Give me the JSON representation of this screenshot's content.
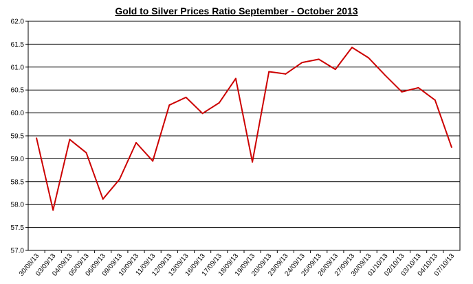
{
  "chart_data": {
    "type": "line",
    "title": "Gold to Silver Prices Ratio September - October 2013",
    "xlabel": "",
    "ylabel": "",
    "ylim": [
      57.0,
      62.0
    ],
    "ytick_step": 0.5,
    "grid": "horizontal",
    "legend": "none",
    "categories": [
      "30/08/13",
      "03/09/13",
      "04/09/13",
      "05/09/13",
      "06/09/13",
      "09/09/13",
      "10/09/13",
      "11/09/13",
      "12/09/13",
      "13/09/13",
      "16/09/13",
      "17/09/13",
      "18/09/13",
      "19/09/13",
      "20/09/13",
      "23/09/13",
      "24/09/13",
      "25/09/13",
      "26/09/13",
      "27/09/13",
      "30/09/13",
      "01/10/13",
      "02/10/13",
      "03/10/13",
      "04/10/13",
      "07/10/13"
    ],
    "series": [
      {
        "color": "#cc0000",
        "values": [
          59.45,
          57.88,
          59.42,
          59.13,
          58.12,
          58.55,
          59.35,
          58.95,
          60.17,
          60.34,
          59.99,
          60.22,
          60.75,
          58.93,
          60.9,
          60.85,
          61.1,
          61.17,
          60.95,
          61.43,
          61.2,
          60.82,
          60.46,
          60.55,
          60.28,
          59.25
        ]
      }
    ]
  }
}
